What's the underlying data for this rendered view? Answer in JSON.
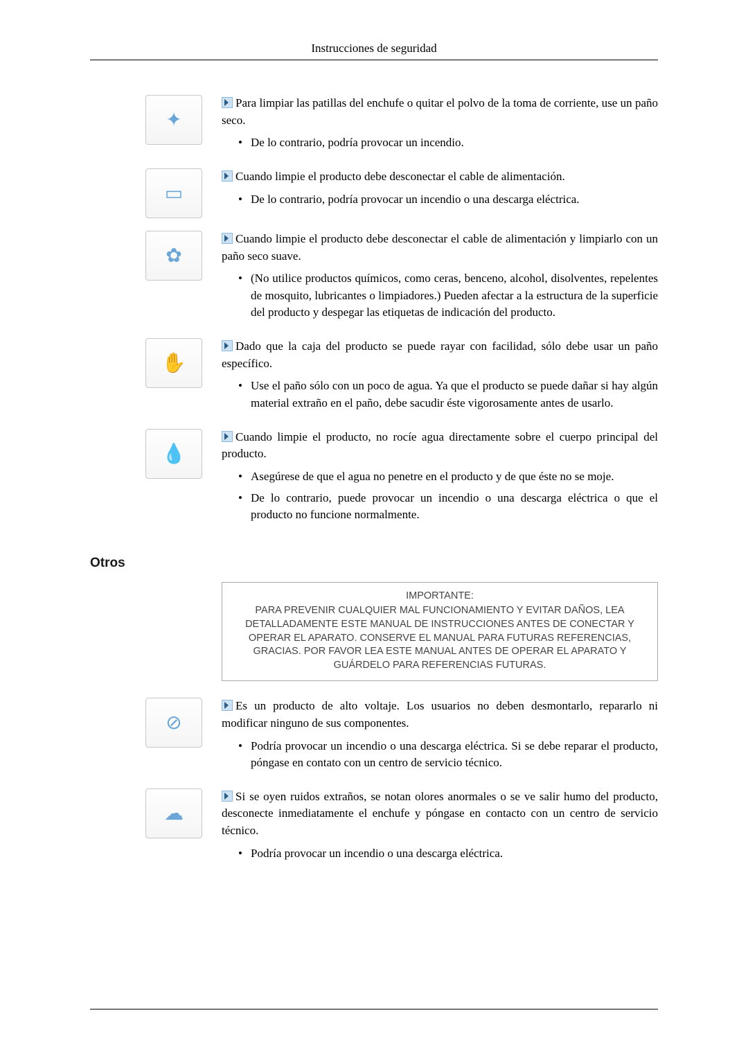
{
  "header": {
    "title": "Instrucciones de seguridad"
  },
  "items": [
    {
      "icon_glyph": "✦",
      "lead": "Para limpiar las patillas del enchufe o quitar el polvo de la toma de corriente, use un paño seco.",
      "bullets": [
        "De lo contrario, podría provocar un incendio."
      ]
    },
    {
      "icon_glyph": "▭",
      "lead": "Cuando limpie el producto debe desconectar el cable de alimentación.",
      "bullets": [
        "De lo contrario, podría provocar un incendio o una descarga eléctrica."
      ]
    },
    {
      "icon_glyph": "✿",
      "lead": "Cuando limpie el producto debe desconectar el cable de alimentación y limpiarlo con un paño seco suave.",
      "bullets": [
        "(No utilice productos químicos, como ceras, benceno, alcohol, disolventes, repelentes de mosquito, lubricantes o limpiadores.) Pueden afectar a la estructura de la superficie del producto y despegar las etiquetas de indicación del producto."
      ]
    },
    {
      "icon_glyph": "✋",
      "lead": "Dado que la caja del producto se puede rayar con facilidad, sólo debe usar un paño específico.",
      "bullets": [
        "Use el paño sólo con un poco de agua. Ya que el producto se puede dañar si hay algún material extraño en el paño, debe sacudir éste vigorosamente antes de usarlo."
      ]
    },
    {
      "icon_glyph": "💧",
      "lead": "Cuando limpie el producto, no rocíe agua directamente sobre el cuerpo principal del producto.",
      "bullets": [
        "Asegúrese de que el agua no penetre en el producto y de que éste no se moje.",
        "De lo contrario, puede provocar un incendio o una descarga eléctrica o que el producto no funcione normalmente."
      ]
    }
  ],
  "section": {
    "title": "Otros"
  },
  "important": {
    "title": "IMPORTANTE:",
    "body": "PARA PREVENIR CUALQUIER MAL FUNCIONAMIENTO Y EVITAR DAÑOS, LEA DETALLADAMENTE ESTE MANUAL DE INSTRUCCIONES ANTES DE CONECTAR Y OPERAR EL APARATO. CONSERVE EL MANUAL PARA FUTURAS REFERENCIAS, GRACIAS. POR FAVOR LEA ESTE MANUAL ANTES DE OPERAR EL APARATO Y GUÁRDELO PARA REFERENCIAS FUTURAS."
  },
  "items2": [
    {
      "icon_glyph": "⊘",
      "lead": "Es un producto de alto voltaje. Los usuarios no deben desmontarlo, repararlo ni modificar ninguno de sus componentes.",
      "bullets": [
        "Podría provocar un incendio o una descarga eléctrica. Si se debe reparar el producto, póngase en contato con un centro de servicio técnico."
      ]
    },
    {
      "icon_glyph": "☁",
      "lead": "Si se oyen ruidos extraños, se notan olores anormales o se ve salir humo del producto, desconecte inmediatamente el enchufe y póngase en contacto con un centro de servicio técnico.",
      "bullets": [
        "Podría provocar un incendio o una descarga eléctrica."
      ]
    }
  ],
  "style": {
    "page_bg": "#ffffff",
    "text_color": "#000000",
    "body_font": "serif",
    "body_fontsize_pt": 12,
    "heading_font": "sans-serif",
    "heading_fontsize_pt": 14,
    "important_fontsize_pt": 10.5,
    "arrow_bg": "#cde3f4",
    "arrow_border": "#8fb8d8",
    "arrow_fill": "#2a5b84",
    "icon_border": "#c8c8c8",
    "important_border": "#aaaaaa",
    "rule_color": "#000000"
  }
}
